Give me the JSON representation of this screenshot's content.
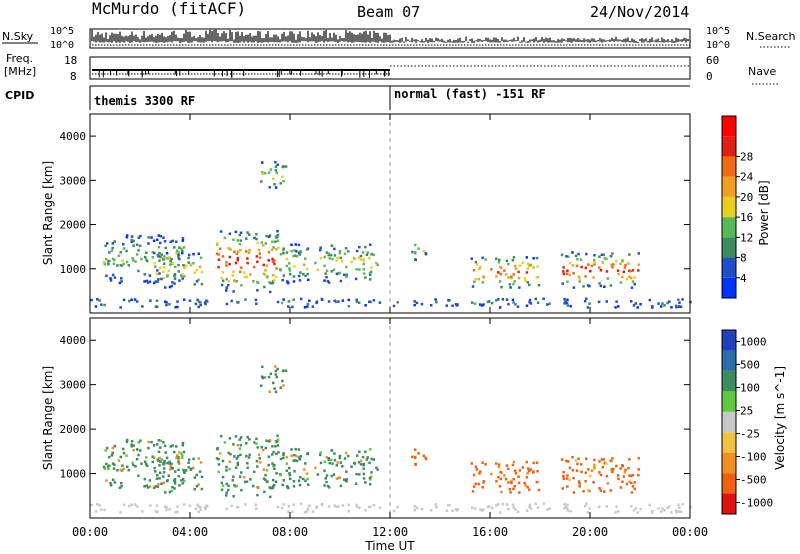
{
  "header": {
    "station": "McMurdo (fitACF)",
    "beam": "Beam 07",
    "date": "24/Nov/2014"
  },
  "summary_panel": {
    "left_labels": {
      "nsky": "N.Sky",
      "freq_line1": "Freq.",
      "freq_line2": "[MHz]",
      "cpid": "CPID"
    },
    "right_labels": {
      "nsearch": "N.Search",
      "nave": "Nave"
    },
    "noise_ticks_left": [
      "10^5",
      "10^0"
    ],
    "noise_ticks_right": [
      "10^5",
      "10^0"
    ],
    "freq_ticks": [
      "18",
      "8"
    ],
    "nave_ticks": [
      "60",
      "0"
    ],
    "cpid_segments": [
      {
        "label": "themis 3300 RF",
        "start_ut": "00:00"
      },
      {
        "label": "normal (fast) -151 RF",
        "start_ut": "12:00"
      }
    ]
  },
  "colors": {
    "power_scale": [
      "#0033ff",
      "#1f4fc8",
      "#3c8c5c",
      "#5ab85a",
      "#e8d020",
      "#f0a020",
      "#f06a10",
      "#e02010",
      "#ff0000"
    ],
    "velocity_scale": [
      "#e01010",
      "#f06010",
      "#f09020",
      "#f0c040",
      "#c8c8c8",
      "#60c840",
      "#3c8c5c",
      "#2a6fa8",
      "#2040c0"
    ]
  },
  "chart_data": [
    {
      "type": "heatmap",
      "name": "power",
      "xlabel": "",
      "ylabel": "Slant Range [km]",
      "x_ticks": [
        "00:00",
        "04:00",
        "08:00",
        "12:00",
        "16:00",
        "20:00",
        "00:00"
      ],
      "y_ticks": [
        "1000",
        "2000",
        "3000",
        "4000"
      ],
      "ylim": [
        0,
        4500
      ],
      "colorbar": {
        "label": "Power [dB]",
        "ticks": [
          "4",
          "8",
          "12",
          "16",
          "20",
          "24",
          "28"
        ],
        "range": [
          0,
          30
        ]
      }
    },
    {
      "type": "heatmap",
      "name": "velocity",
      "xlabel": "Time UT",
      "ylabel": "Slant Range [km]",
      "x_ticks": [
        "00:00",
        "04:00",
        "08:00",
        "12:00",
        "16:00",
        "20:00",
        "00:00"
      ],
      "y_ticks": [
        "1000",
        "2000",
        "3000",
        "4000"
      ],
      "ylim": [
        0,
        4500
      ],
      "colorbar": {
        "label": "Velocity [m s^-1]",
        "ticks": [
          "1000",
          "500",
          "100",
          "25",
          "-25",
          "-100",
          "-500",
          "-1000"
        ]
      }
    }
  ]
}
